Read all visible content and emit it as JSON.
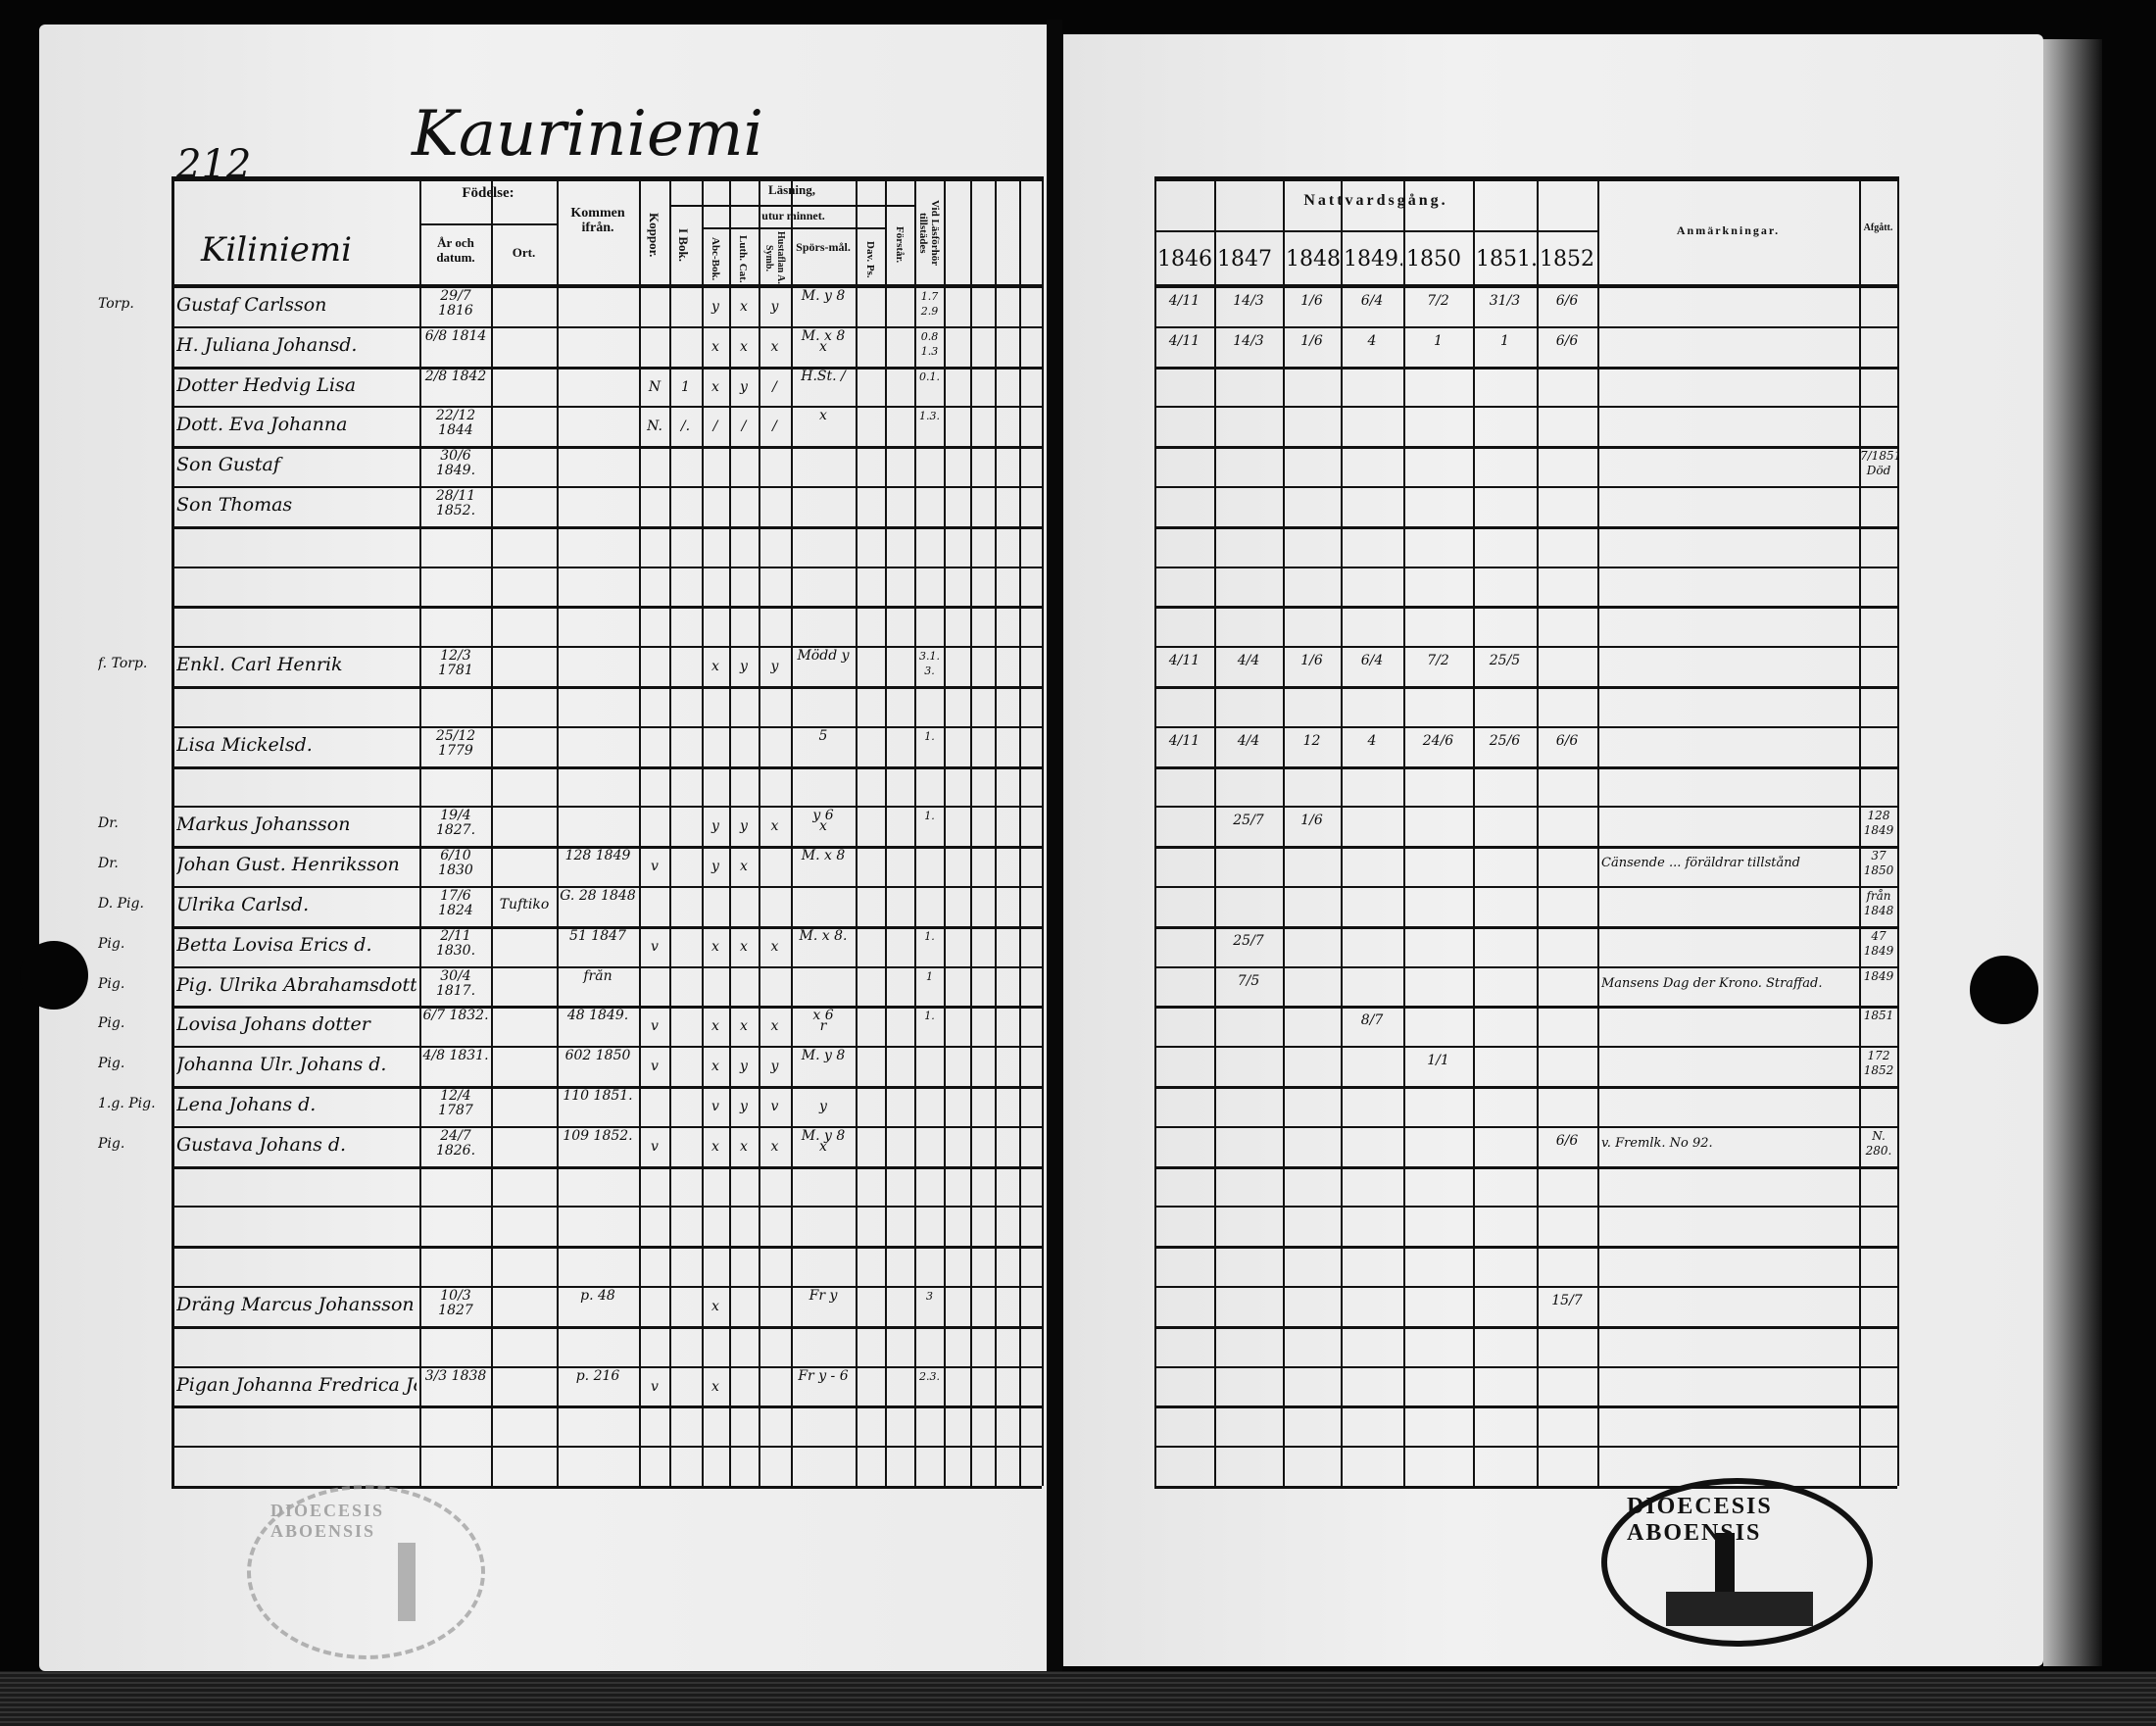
{
  "page_number": "212",
  "village": "Kauriniemi",
  "name_header": "Kiliniemi",
  "headers": {
    "fodelse": "Födelse:",
    "ar": "År och datum.",
    "ort": "Ort.",
    "kommen": "Kommen ifrån.",
    "koppor": "Koppor.",
    "lasning": "Läsning,",
    "utur_minnet": "utur minnet.",
    "ibok": "I Bok.",
    "abc": "Abc-Bok.",
    "luth": "Luth. Cat.",
    "husf": "Hustaflan A. Symb.",
    "spors": "Spörs-mål.",
    "dav": "Dav. Ps.",
    "forstar": "Förstår.",
    "vid": "Vid Läsförhör tillstädes",
    "nattvard": "Nattvardsgång.",
    "anm": "Anmärkningar.",
    "afgatt": "Afgått."
  },
  "years": [
    "1846.",
    "1847",
    "1848",
    "1849.",
    "1850",
    "1851.",
    "1852 J."
  ],
  "rows": [
    {
      "i": 0,
      "tag": "Torp.",
      "name": "Gustaf Carlsson",
      "born": "29/7 1816",
      "from": "",
      "marks": [
        "",
        "y",
        "x",
        "y",
        ""
      ],
      "spors": "M. y 8",
      "vid": "1.7 2.9",
      "y": [
        "4/11",
        "14/3",
        "1/6",
        "6/4",
        "7/2",
        "31/3",
        "6/6"
      ]
    },
    {
      "i": 1,
      "tag": "",
      "name": "H. Juliana Johansd.",
      "born": "6/8 1814",
      "from": "",
      "marks": [
        "",
        "x",
        "x",
        "x",
        "x"
      ],
      "spors": "M. x 8",
      "vid": "0.8 1.3",
      "y": [
        "4/11",
        "14/3",
        "1/6",
        "4",
        "1",
        "1",
        "6/6"
      ]
    },
    {
      "i": 2,
      "tag": "",
      "name": "Dotter Hedvig Lisa",
      "born": "2/8 1842",
      "koppor": "N",
      "marks": [
        "1",
        "x",
        "y",
        "/",
        ""
      ],
      "spors": "H.St. /",
      "vid": "0.1.",
      "y": []
    },
    {
      "i": 3,
      "tag": "",
      "name": "Dott. Eva Johanna",
      "born": "22/12 1844",
      "koppor": "N.",
      "marks": [
        "/.",
        "/",
        "/",
        "/",
        ""
      ],
      "spors": "x",
      "vid": "1.3.",
      "y": []
    },
    {
      "i": 4,
      "tag": "",
      "name": "Son Gustaf",
      "born": "30/6 1849.",
      "y": [],
      "afg": "7/1851 Död"
    },
    {
      "i": 5,
      "tag": "",
      "name": "Son Thomas",
      "born": "28/11 1852.",
      "y": []
    },
    {
      "i": 9,
      "tag": "f. Torp.",
      "name": "Enkl. Carl Henrik",
      "born": "12/3 1781",
      "marks": [
        "",
        "x",
        "y",
        "y",
        ""
      ],
      "spors": "Mödd y",
      "vid": "3.1. 3.",
      "y": [
        "4/11",
        "4/4",
        "1/6",
        "6/4",
        "7/2",
        "25/5",
        ""
      ]
    },
    {
      "i": 11,
      "tag": "",
      "name": "Lisa Mickelsd.",
      "born": "25/12 1779",
      "marks": [
        "",
        "",
        "",
        "",
        ""
      ],
      "spors": "5",
      "vid": "1.",
      "y": [
        "4/11",
        "4/4",
        "12",
        "4",
        "24/6",
        "25/6",
        "6/6"
      ]
    },
    {
      "i": 13,
      "tag": "Dr.",
      "name": "Markus Johansson",
      "born": "19/4 1827.",
      "marks": [
        "",
        "y",
        "y",
        "x",
        "x"
      ],
      "spors": "y 6",
      "vid": "1.",
      "y": [
        "",
        "25/7",
        "1/6",
        "",
        "",
        "",
        ""
      ],
      "afg": "128 1849"
    },
    {
      "i": 14,
      "tag": "Dr.",
      "name": "Johan Gust. Henriksson",
      "born": "6/10 1830",
      "from": "128 1849",
      "koppor": "v",
      "marks": [
        "",
        "y",
        "x",
        "",
        ""
      ],
      "spors": "M. x 8",
      "y": [],
      "remark": "Cänsende ... föräldrar tillstånd",
      "afg": "37 1850"
    },
    {
      "i": 15,
      "tag": "D. Pig.",
      "name": "Ulrika Carlsd.",
      "born": "17/6 1824",
      "ort": "Tuftiko",
      "from": "G. 28 1848",
      "y": [],
      "afg": "från 1848"
    },
    {
      "i": 16,
      "tag": "Pig.",
      "name": "Betta Lovisa Erics d.",
      "born": "2/11 1830.",
      "from": "51 1847",
      "koppor": "v",
      "marks": [
        "",
        "x",
        "x",
        "x",
        ""
      ],
      "spors": "M. x 8.",
      "vid": "1.",
      "y": [
        "",
        "25/7",
        "",
        "",
        "",
        "",
        ""
      ],
      "afg": "47 1849"
    },
    {
      "i": 17,
      "tag": "Pig.",
      "name": "Pig. Ulrika Abrahamsdotter",
      "born": "30/4 1817.",
      "from": "från",
      "vid": "1",
      "y": [
        "",
        "7/5",
        "",
        "",
        "",
        "",
        ""
      ],
      "remark": "Mansens Dag der Krono. Straffad.",
      "afg": "1849"
    },
    {
      "i": 18,
      "tag": "Pig.",
      "name": "Lovisa Johans dotter",
      "born": "6/7 1832.",
      "from": "48 1849.",
      "koppor": "v",
      "marks": [
        "",
        "x",
        "x",
        "x",
        "r"
      ],
      "spors": "x 6",
      "vid": "1.",
      "y": [
        "",
        "",
        "",
        "8/7",
        "",
        "",
        ""
      ],
      "afg": "1851"
    },
    {
      "i": 19,
      "tag": "Pig.",
      "name": "Johanna Ulr. Johans d.",
      "born": "4/8 1831.",
      "from": "602 1850",
      "koppor": "v",
      "marks": [
        "",
        "x",
        "y",
        "y",
        ""
      ],
      "spors": "M. y 8",
      "y": [
        "",
        "",
        "",
        "",
        "1/1",
        "",
        ""
      ],
      "afg": "172 1852"
    },
    {
      "i": 20,
      "tag": "1.g. Pig.",
      "name": "Lena Johans d.",
      "born": "12/4 1787",
      "from": "110 1851.",
      "marks": [
        "",
        "v",
        "y",
        "v",
        "y"
      ],
      "y": []
    },
    {
      "i": 21,
      "tag": "Pig.",
      "name": "Gustava Johans d.",
      "born": "24/7 1826.",
      "from": "109 1852.",
      "koppor": "v",
      "marks": [
        "",
        "x",
        "x",
        "x",
        "x"
      ],
      "spors": "M. y 8",
      "y": [
        "",
        "",
        "",
        "",
        "",
        "",
        "6/6"
      ],
      "remark": "v. Fremlk. No 92.",
      "afg": "N. 280."
    },
    {
      "i": 25,
      "tag": "",
      "name": "Dräng Marcus Johansson",
      "born": "10/3 1827",
      "from": "p. 48",
      "marks": [
        "",
        "x",
        "",
        "",
        ""
      ],
      "spors": "Fr y",
      "vid": "3",
      "y": [
        "",
        "",
        "",
        "",
        "",
        "",
        "15/7"
      ]
    },
    {
      "i": 27,
      "tag": "",
      "name": "Pigan Johanna Fredrica Johansd.",
      "born": "3/3 1838",
      "from": "p. 216",
      "koppor": "v",
      "marks": [
        "",
        "x",
        "",
        "",
        ""
      ],
      "spors": "Fr y - 6",
      "vid": "2.3.",
      "y": []
    }
  ],
  "stamp_right": "DIOECESIS ABOENSIS",
  "stamp_left": "DIOECESIS ABOENSIS"
}
